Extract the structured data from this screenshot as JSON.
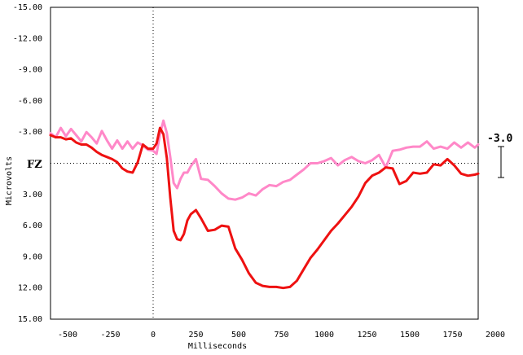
{
  "chart_data": {
    "type": "line",
    "xlabel": "Milliseconds",
    "ylabel": "Microvolts",
    "xlim": [
      -600,
      1900
    ],
    "ylim": [
      -15,
      15
    ],
    "y_inverted": true,
    "x_ticks": [
      -500,
      -250,
      0,
      250,
      500,
      750,
      1000,
      1250,
      1500,
      1750,
      2000
    ],
    "x_tick_labels": [
      "-500",
      "-250",
      "0",
      "250",
      "500",
      "750",
      "1000",
      "1250",
      "1500",
      "1750",
      "2000"
    ],
    "y_ticks": [
      -15,
      -12,
      -9,
      -6,
      -3,
      0,
      3,
      6,
      9,
      12,
      15
    ],
    "y_tick_labels": [
      "-15.00",
      "-12.00",
      "-9.00",
      "-6.00",
      "-3.00",
      "",
      "3.00",
      "6.00",
      "9.00",
      "12.00",
      "15.00"
    ],
    "channel_label": "FZ",
    "scale_bar_label": "-3.0",
    "grid": false,
    "reference_lines": [
      "x = 0 (dotted)",
      "y = 0 (dotted)"
    ],
    "series": [
      {
        "color": "#ff88c8",
        "x": [
          -600,
          -570,
          -540,
          -510,
          -480,
          -450,
          -420,
          -390,
          -360,
          -330,
          -300,
          -270,
          -240,
          -210,
          -180,
          -150,
          -120,
          -90,
          -60,
          -30,
          0,
          20,
          40,
          60,
          80,
          100,
          120,
          140,
          160,
          180,
          200,
          220,
          250,
          280,
          320,
          360,
          400,
          440,
          480,
          520,
          560,
          600,
          640,
          680,
          720,
          760,
          800,
          840,
          880,
          920,
          960,
          1000,
          1040,
          1080,
          1120,
          1160,
          1200,
          1240,
          1280,
          1320,
          1360,
          1400,
          1440,
          1480,
          1520,
          1560,
          1600,
          1640,
          1680,
          1720,
          1760,
          1800,
          1840,
          1880,
          1900
        ],
        "y": [
          -2.9,
          -2.5,
          -3.4,
          -2.6,
          -3.3,
          -2.7,
          -2.1,
          -3.0,
          -2.5,
          -1.9,
          -3.1,
          -2.2,
          -1.4,
          -2.2,
          -1.4,
          -2.1,
          -1.4,
          -2.0,
          -1.7,
          -1.3,
          -1.2,
          -0.9,
          -2.8,
          -4.1,
          -2.9,
          -0.6,
          1.9,
          2.4,
          1.5,
          0.9,
          0.9,
          0.3,
          -0.4,
          1.5,
          1.6,
          2.2,
          2.9,
          3.4,
          3.5,
          3.3,
          2.9,
          3.1,
          2.5,
          2.1,
          2.2,
          1.8,
          1.6,
          1.1,
          0.6,
          0.0,
          0.0,
          -0.2,
          -0.5,
          0.2,
          -0.3,
          -0.6,
          -0.2,
          0.0,
          -0.3,
          -0.8,
          0.4,
          -1.2,
          -1.3,
          -1.5,
          -1.6,
          -1.6,
          -2.1,
          -1.4,
          -1.6,
          -1.4,
          -2.0,
          -1.5,
          -2.0,
          -1.5,
          -1.8
        ]
      },
      {
        "color": "#ee1111",
        "x": [
          -600,
          -570,
          -540,
          -510,
          -480,
          -450,
          -420,
          -390,
          -360,
          -330,
          -300,
          -270,
          -240,
          -210,
          -180,
          -150,
          -120,
          -90,
          -60,
          -30,
          0,
          20,
          40,
          60,
          80,
          100,
          120,
          140,
          160,
          180,
          200,
          220,
          250,
          280,
          320,
          360,
          400,
          440,
          480,
          520,
          560,
          600,
          640,
          680,
          720,
          760,
          800,
          840,
          880,
          920,
          960,
          1000,
          1040,
          1080,
          1120,
          1160,
          1200,
          1240,
          1280,
          1320,
          1360,
          1400,
          1440,
          1480,
          1520,
          1560,
          1600,
          1640,
          1680,
          1720,
          1760,
          1800,
          1840,
          1880,
          1900
        ],
        "y": [
          -2.7,
          -2.5,
          -2.5,
          -2.3,
          -2.4,
          -2.0,
          -1.8,
          -1.8,
          -1.5,
          -1.1,
          -0.8,
          -0.6,
          -0.4,
          -0.1,
          0.5,
          0.8,
          0.9,
          -0.1,
          -1.8,
          -1.4,
          -1.4,
          -1.9,
          -3.4,
          -2.8,
          -0.5,
          3.3,
          6.5,
          7.3,
          7.4,
          6.8,
          5.5,
          4.9,
          4.5,
          5.3,
          6.5,
          6.4,
          6.0,
          6.1,
          8.2,
          9.3,
          10.6,
          11.5,
          11.8,
          11.9,
          11.9,
          12.0,
          11.9,
          11.3,
          10.2,
          9.1,
          8.3,
          7.4,
          6.5,
          5.8,
          5.0,
          4.2,
          3.2,
          1.9,
          1.2,
          0.9,
          0.4,
          0.5,
          2.0,
          1.7,
          0.9,
          1.0,
          0.9,
          0.1,
          0.2,
          -0.4,
          0.2,
          1.0,
          1.2,
          1.1,
          1.0
        ]
      }
    ]
  }
}
